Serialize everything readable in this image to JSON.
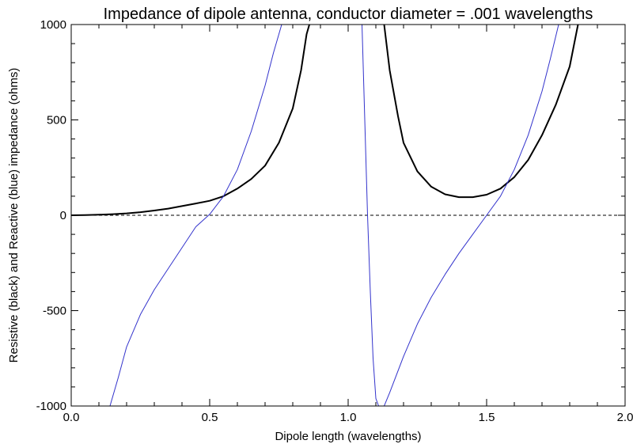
{
  "chart_data": {
    "type": "line",
    "title": "Impedance of dipole antenna, conductor diameter = .001 wavelengths",
    "xlabel": "Dipole length (wavelengths)",
    "ylabel": "Resistive (black) and Reactive (blue) impedance (ohms)",
    "xlim": [
      0.0,
      2.0
    ],
    "ylim": [
      -1000,
      1000
    ],
    "x_ticks": [
      0.0,
      0.5,
      1.0,
      1.5,
      2.0
    ],
    "x_tick_labels": [
      "0.0",
      "0.5",
      "1.0",
      "1.5",
      "2.0"
    ],
    "y_ticks": [
      -1000,
      -500,
      0,
      500,
      1000
    ],
    "y_tick_labels": [
      "-1000",
      "-500",
      "0",
      "500",
      "1000"
    ],
    "grid": false,
    "zero_line": {
      "y": 0,
      "style": "dashed",
      "color": "#000000"
    },
    "series": [
      {
        "color": "#000000",
        "segments": [
          [
            [
              0.0,
              0
            ],
            [
              0.05,
              1
            ],
            [
              0.1,
              3
            ],
            [
              0.15,
              6
            ],
            [
              0.2,
              10
            ],
            [
              0.25,
              16
            ],
            [
              0.3,
              25
            ],
            [
              0.35,
              35
            ],
            [
              0.4,
              48
            ],
            [
              0.45,
              62
            ],
            [
              0.5,
              76
            ],
            [
              0.55,
              100
            ],
            [
              0.6,
              140
            ],
            [
              0.65,
              190
            ],
            [
              0.7,
              260
            ],
            [
              0.75,
              380
            ],
            [
              0.8,
              560
            ],
            [
              0.83,
              760
            ],
            [
              0.85,
              950
            ],
            [
              0.86,
              1000
            ]
          ],
          [
            [
              1.13,
              1000
            ],
            [
              1.15,
              760
            ],
            [
              1.18,
              520
            ],
            [
              1.2,
              380
            ],
            [
              1.25,
              230
            ],
            [
              1.3,
              150
            ],
            [
              1.35,
              110
            ],
            [
              1.4,
              95
            ],
            [
              1.45,
              95
            ],
            [
              1.5,
              108
            ],
            [
              1.55,
              140
            ],
            [
              1.6,
              200
            ],
            [
              1.65,
              290
            ],
            [
              1.7,
              420
            ],
            [
              1.75,
              580
            ],
            [
              1.8,
              780
            ],
            [
              1.83,
              1000
            ]
          ]
        ]
      },
      {
        "color": "#3333cc",
        "segments": [
          [
            [
              0.14,
              -1000
            ],
            [
              0.17,
              -850
            ],
            [
              0.2,
              -690
            ],
            [
              0.25,
              -520
            ],
            [
              0.3,
              -390
            ],
            [
              0.35,
              -280
            ],
            [
              0.4,
              -170
            ],
            [
              0.45,
              -60
            ],
            [
              0.5,
              5
            ],
            [
              0.55,
              100
            ],
            [
              0.6,
              240
            ],
            [
              0.65,
              440
            ],
            [
              0.7,
              680
            ],
            [
              0.73,
              850
            ],
            [
              0.76,
              1000
            ]
          ],
          [
            [
              1.05,
              1000
            ],
            [
              1.06,
              500
            ],
            [
              1.07,
              0
            ],
            [
              1.08,
              -400
            ],
            [
              1.09,
              -750
            ],
            [
              1.1,
              -960
            ],
            [
              1.11,
              -1000
            ]
          ],
          [
            [
              1.13,
              -1000
            ],
            [
              1.15,
              -930
            ],
            [
              1.2,
              -740
            ],
            [
              1.25,
              -570
            ],
            [
              1.3,
              -430
            ],
            [
              1.35,
              -310
            ],
            [
              1.4,
              -200
            ],
            [
              1.45,
              -100
            ],
            [
              1.5,
              0
            ],
            [
              1.55,
              100
            ],
            [
              1.6,
              240
            ],
            [
              1.65,
              420
            ],
            [
              1.7,
              650
            ],
            [
              1.73,
              820
            ],
            [
              1.76,
              1000
            ]
          ]
        ]
      }
    ]
  }
}
